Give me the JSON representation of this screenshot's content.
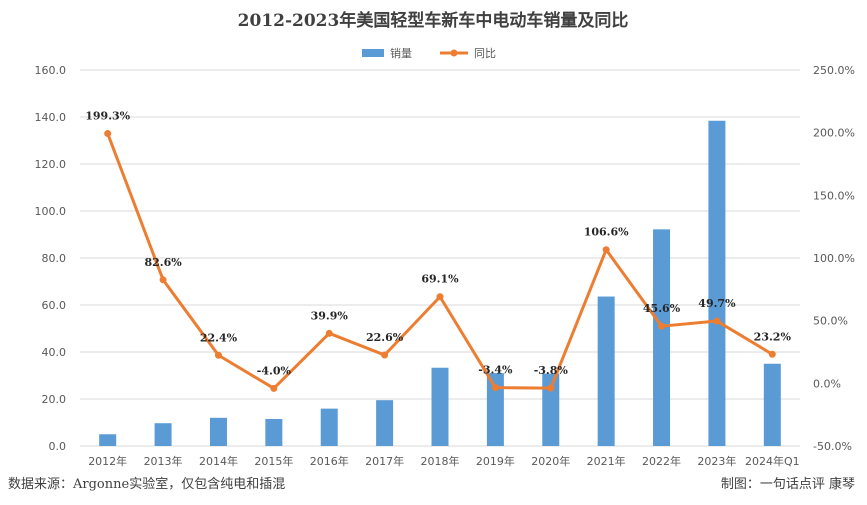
{
  "chart_data": {
    "type": "bar",
    "title": "2012-2023年美国轻型车新车中电动车销量及同比",
    "categories": [
      "2012年",
      "2013年",
      "2014年",
      "2015年",
      "2016年",
      "2017年",
      "2018年",
      "2019年",
      "2020年",
      "2021年",
      "2022年",
      "2023年",
      "2024年Q1"
    ],
    "series": [
      {
        "name": "销量",
        "type": "bar",
        "axis": "left",
        "color": "#5B9BD5",
        "values": [
          5.0,
          9.7,
          12.0,
          11.5,
          15.9,
          19.5,
          33.3,
          31.0,
          30.8,
          63.6,
          92.2,
          138.4,
          35.0
        ]
      },
      {
        "name": "同比",
        "type": "line",
        "axis": "right",
        "color": "#ED7D31",
        "values": [
          199.3,
          82.6,
          22.4,
          -4.0,
          39.9,
          22.6,
          69.1,
          -3.4,
          -3.8,
          106.6,
          45.6,
          49.7,
          23.2
        ],
        "labels": [
          "199.3%",
          "82.6%",
          "22.4%",
          "-4.0%",
          "39.9%",
          "22.6%",
          "69.1%",
          "-3.4%",
          "-3.8%",
          "106.6%",
          "45.6%",
          "49.7%",
          "23.2%"
        ]
      }
    ],
    "y_left": {
      "min": 0,
      "max": 160,
      "ticks": [
        "0.0",
        "20.0",
        "40.0",
        "60.0",
        "80.0",
        "100.0",
        "120.0",
        "140.0",
        "160.0"
      ]
    },
    "y_right": {
      "min": -50,
      "max": 250,
      "ticks": [
        "-50.0%",
        "0.0%",
        "50.0%",
        "100.0%",
        "150.0%",
        "200.0%",
        "250.0%"
      ]
    },
    "grid": true,
    "legend_position": "top-center"
  },
  "footer": {
    "source": "数据来源：Argonne实验室，仅包含纯电和插混",
    "credit": "制图：一句话点评  康琴"
  }
}
